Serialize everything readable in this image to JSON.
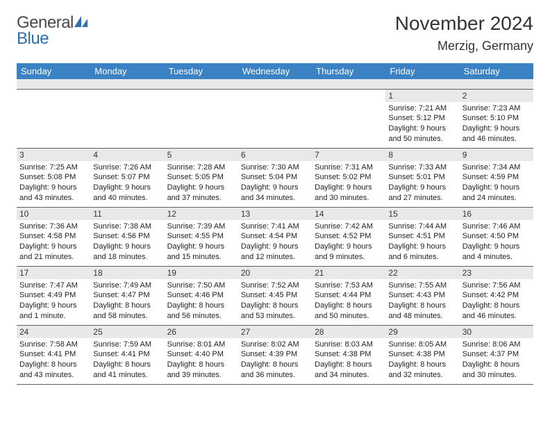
{
  "brand": {
    "part1": "General",
    "part2": "Blue"
  },
  "title": "November 2024",
  "location": "Merzig, Germany",
  "colors": {
    "header_bg": "#3b82c4",
    "header_text": "#ffffff",
    "daynum_bg": "#e9e9e9",
    "row_border": "#606060",
    "text": "#222222",
    "brand_gray": "#4a4a4a",
    "brand_blue": "#2f6fab"
  },
  "weekdays": [
    "Sunday",
    "Monday",
    "Tuesday",
    "Wednesday",
    "Thursday",
    "Friday",
    "Saturday"
  ],
  "first_weekday_index": 5,
  "days": [
    {
      "n": 1,
      "sunrise": "7:21 AM",
      "sunset": "5:12 PM",
      "daylight": "9 hours and 50 minutes."
    },
    {
      "n": 2,
      "sunrise": "7:23 AM",
      "sunset": "5:10 PM",
      "daylight": "9 hours and 46 minutes."
    },
    {
      "n": 3,
      "sunrise": "7:25 AM",
      "sunset": "5:08 PM",
      "daylight": "9 hours and 43 minutes."
    },
    {
      "n": 4,
      "sunrise": "7:26 AM",
      "sunset": "5:07 PM",
      "daylight": "9 hours and 40 minutes."
    },
    {
      "n": 5,
      "sunrise": "7:28 AM",
      "sunset": "5:05 PM",
      "daylight": "9 hours and 37 minutes."
    },
    {
      "n": 6,
      "sunrise": "7:30 AM",
      "sunset": "5:04 PM",
      "daylight": "9 hours and 34 minutes."
    },
    {
      "n": 7,
      "sunrise": "7:31 AM",
      "sunset": "5:02 PM",
      "daylight": "9 hours and 30 minutes."
    },
    {
      "n": 8,
      "sunrise": "7:33 AM",
      "sunset": "5:01 PM",
      "daylight": "9 hours and 27 minutes."
    },
    {
      "n": 9,
      "sunrise": "7:34 AM",
      "sunset": "4:59 PM",
      "daylight": "9 hours and 24 minutes."
    },
    {
      "n": 10,
      "sunrise": "7:36 AM",
      "sunset": "4:58 PM",
      "daylight": "9 hours and 21 minutes."
    },
    {
      "n": 11,
      "sunrise": "7:38 AM",
      "sunset": "4:56 PM",
      "daylight": "9 hours and 18 minutes."
    },
    {
      "n": 12,
      "sunrise": "7:39 AM",
      "sunset": "4:55 PM",
      "daylight": "9 hours and 15 minutes."
    },
    {
      "n": 13,
      "sunrise": "7:41 AM",
      "sunset": "4:54 PM",
      "daylight": "9 hours and 12 minutes."
    },
    {
      "n": 14,
      "sunrise": "7:42 AM",
      "sunset": "4:52 PM",
      "daylight": "9 hours and 9 minutes."
    },
    {
      "n": 15,
      "sunrise": "7:44 AM",
      "sunset": "4:51 PM",
      "daylight": "9 hours and 6 minutes."
    },
    {
      "n": 16,
      "sunrise": "7:46 AM",
      "sunset": "4:50 PM",
      "daylight": "9 hours and 4 minutes."
    },
    {
      "n": 17,
      "sunrise": "7:47 AM",
      "sunset": "4:49 PM",
      "daylight": "9 hours and 1 minute."
    },
    {
      "n": 18,
      "sunrise": "7:49 AM",
      "sunset": "4:47 PM",
      "daylight": "8 hours and 58 minutes."
    },
    {
      "n": 19,
      "sunrise": "7:50 AM",
      "sunset": "4:46 PM",
      "daylight": "8 hours and 56 minutes."
    },
    {
      "n": 20,
      "sunrise": "7:52 AM",
      "sunset": "4:45 PM",
      "daylight": "8 hours and 53 minutes."
    },
    {
      "n": 21,
      "sunrise": "7:53 AM",
      "sunset": "4:44 PM",
      "daylight": "8 hours and 50 minutes."
    },
    {
      "n": 22,
      "sunrise": "7:55 AM",
      "sunset": "4:43 PM",
      "daylight": "8 hours and 48 minutes."
    },
    {
      "n": 23,
      "sunrise": "7:56 AM",
      "sunset": "4:42 PM",
      "daylight": "8 hours and 46 minutes."
    },
    {
      "n": 24,
      "sunrise": "7:58 AM",
      "sunset": "4:41 PM",
      "daylight": "8 hours and 43 minutes."
    },
    {
      "n": 25,
      "sunrise": "7:59 AM",
      "sunset": "4:41 PM",
      "daylight": "8 hours and 41 minutes."
    },
    {
      "n": 26,
      "sunrise": "8:01 AM",
      "sunset": "4:40 PM",
      "daylight": "8 hours and 39 minutes."
    },
    {
      "n": 27,
      "sunrise": "8:02 AM",
      "sunset": "4:39 PM",
      "daylight": "8 hours and 36 minutes."
    },
    {
      "n": 28,
      "sunrise": "8:03 AM",
      "sunset": "4:38 PM",
      "daylight": "8 hours and 34 minutes."
    },
    {
      "n": 29,
      "sunrise": "8:05 AM",
      "sunset": "4:38 PM",
      "daylight": "8 hours and 32 minutes."
    },
    {
      "n": 30,
      "sunrise": "8:06 AM",
      "sunset": "4:37 PM",
      "daylight": "8 hours and 30 minutes."
    }
  ],
  "labels": {
    "sunrise": "Sunrise:",
    "sunset": "Sunset:",
    "daylight": "Daylight:"
  }
}
